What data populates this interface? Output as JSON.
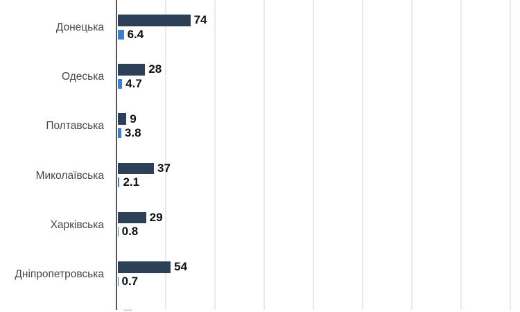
{
  "chart_data": {
    "type": "bar",
    "orientation": "horizontal",
    "title": "",
    "categories": [
      "Донецька",
      "Одеська",
      "Полтавська",
      "Миколаївська",
      "Харківська",
      "Дніпропетровська"
    ],
    "series": [
      {
        "name": "",
        "color": "#2e4058",
        "values": [
          74,
          28,
          9,
          37,
          29,
          54
        ],
        "labels": [
          "74",
          "28",
          "9",
          "37",
          "29",
          "54"
        ]
      },
      {
        "name": "",
        "color": "#3d7dd2",
        "values": [
          6.4,
          4.7,
          3.8,
          2.1,
          0.8,
          0.7
        ],
        "labels": [
          "6.4",
          "4.7",
          "3.8",
          "2.1",
          "0.8",
          "0.7"
        ]
      }
    ],
    "xlim": [
      0,
      400
    ],
    "grid": {
      "visible": true,
      "vertical_line_count": 8,
      "step_value": 50,
      "color": "#eaeaea"
    },
    "legend": "none",
    "axis_color": "#56575b",
    "value_label_color": "#0f0f0f",
    "category_label_color": "#474747"
  }
}
